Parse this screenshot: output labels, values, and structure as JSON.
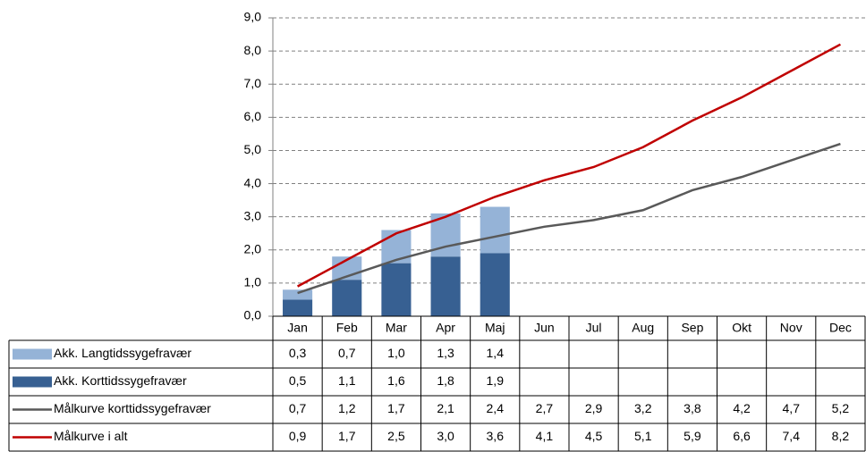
{
  "chart_data": {
    "type": "bar",
    "categories": [
      "Jan",
      "Feb",
      "Mar",
      "Apr",
      "Maj",
      "Jun",
      "Jul",
      "Aug",
      "Sep",
      "Okt",
      "Nov",
      "Dec"
    ],
    "series": [
      {
        "name": "Akk. Langtidssygefravær",
        "type": "bar",
        "color": "#95b3d7",
        "values": [
          0.3,
          0.7,
          1.0,
          1.3,
          1.4,
          null,
          null,
          null,
          null,
          null,
          null,
          null
        ],
        "value_labels": [
          "0,3",
          "0,7",
          "1,0",
          "1,3",
          "1,4",
          null,
          null,
          null,
          null,
          null,
          null,
          null
        ]
      },
      {
        "name": "Akk. Korttidssygefravær",
        "type": "bar",
        "color": "#376092",
        "values": [
          0.5,
          1.1,
          1.6,
          1.8,
          1.9,
          null,
          null,
          null,
          null,
          null,
          null,
          null
        ],
        "value_labels": [
          "0,5",
          "1,1",
          "1,6",
          "1,8",
          "1,9",
          null,
          null,
          null,
          null,
          null,
          null,
          null
        ]
      },
      {
        "name": "Målkurve korttidssygefravær",
        "type": "line",
        "color": "#595959",
        "values": [
          0.7,
          1.2,
          1.7,
          2.1,
          2.4,
          2.7,
          2.9,
          3.2,
          3.8,
          4.2,
          4.7,
          5.2
        ],
        "value_labels": [
          "0,7",
          "1,2",
          "1,7",
          "2,1",
          "2,4",
          "2,7",
          "2,9",
          "3,2",
          "3,8",
          "4,2",
          "4,7",
          "5,2"
        ]
      },
      {
        "name": "Målkurve i alt",
        "type": "line",
        "color": "#c00000",
        "values": [
          0.9,
          1.7,
          2.5,
          3.0,
          3.6,
          4.1,
          4.5,
          5.1,
          5.9,
          6.6,
          7.4,
          8.2
        ],
        "value_labels": [
          "0,9",
          "1,7",
          "2,5",
          "3,0",
          "3,6",
          "4,1",
          "4,5",
          "5,1",
          "5,9",
          "6,6",
          "7,4",
          "8,2"
        ]
      }
    ],
    "ylim": [
      0,
      9
    ],
    "yticks": [
      {
        "value": 0,
        "label": "0,0"
      },
      {
        "value": 1,
        "label": "1,0"
      },
      {
        "value": 2,
        "label": "2,0"
      },
      {
        "value": 3,
        "label": "3,0"
      },
      {
        "value": 4,
        "label": "4,0"
      },
      {
        "value": 5,
        "label": "5,0"
      },
      {
        "value": 6,
        "label": "6,0"
      },
      {
        "value": 7,
        "label": "7,0"
      },
      {
        "value": 8,
        "label": "8,0"
      },
      {
        "value": 9,
        "label": "9,0"
      }
    ],
    "grid": true
  }
}
